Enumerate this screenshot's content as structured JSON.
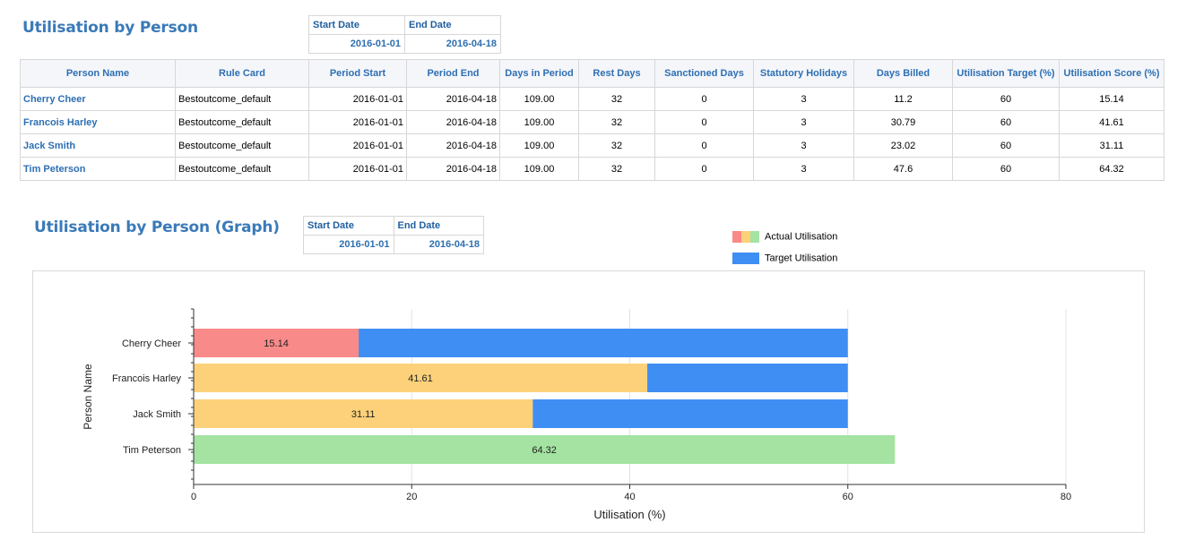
{
  "table_section": {
    "title": "Utilisation by Person",
    "start_date_label": "Start Date",
    "end_date_label": "End Date",
    "start_date": "2016-01-01",
    "end_date": "2016-04-18"
  },
  "table": {
    "headers": [
      "Person Name",
      "Rule Card",
      "Period Start",
      "Period End",
      "Days in Period",
      "Rest Days",
      "Sanctioned Days",
      "Statutory Holidays",
      "Days Billed",
      "Utilisation Target (%)",
      "Utilisation Score (%)"
    ],
    "rows": [
      [
        "Cherry Cheer",
        "Bestoutcome_default",
        "2016-01-01",
        "2016-04-18",
        "109.00",
        "32",
        "0",
        "3",
        "11.2",
        "60",
        "15.14"
      ],
      [
        "Francois Harley",
        "Bestoutcome_default",
        "2016-01-01",
        "2016-04-18",
        "109.00",
        "32",
        "0",
        "3",
        "30.79",
        "60",
        "41.61"
      ],
      [
        "Jack Smith",
        "Bestoutcome_default",
        "2016-01-01",
        "2016-04-18",
        "109.00",
        "32",
        "0",
        "3",
        "23.02",
        "60",
        "31.11"
      ],
      [
        "Tim Peterson",
        "Bestoutcome_default",
        "2016-01-01",
        "2016-04-18",
        "109.00",
        "32",
        "0",
        "3",
        "47.6",
        "60",
        "64.32"
      ]
    ]
  },
  "graph_section": {
    "title": "Utilisation by Person (Graph)",
    "start_date_label": "Start Date",
    "end_date_label": "End Date",
    "start_date": "2016-01-01",
    "end_date": "2016-04-18"
  },
  "legend": {
    "actual": "Actual Utilisation",
    "target": "Target Utilisation"
  },
  "colors": {
    "low": "#f98a8a",
    "mid": "#fcd179",
    "high": "#a4e3a1",
    "target": "#3f8ef4",
    "link": "#2e6fb2"
  },
  "chart_data": {
    "type": "bar",
    "orientation": "horizontal",
    "categories": [
      "Cherry Cheer",
      "Francois Harley",
      "Jack Smith",
      "Tim Peterson"
    ],
    "series": [
      {
        "name": "Actual Utilisation",
        "values": [
          15.14,
          41.61,
          31.11,
          64.32
        ],
        "colors": [
          "#f98a8a",
          "#fcd179",
          "#fcd179",
          "#a4e3a1"
        ]
      },
      {
        "name": "Target Utilisation",
        "values": [
          60,
          60,
          60,
          60
        ],
        "color": "#3f8ef4"
      }
    ],
    "data_labels": [
      "15.14",
      "41.61",
      "31.11",
      "64.32"
    ],
    "xlabel": "Utilisation (%)",
    "ylabel": "Person Name",
    "xlim": [
      0,
      80
    ],
    "xticks": [
      0,
      20,
      40,
      60,
      80
    ],
    "grid": true,
    "legend_position": "top-right"
  }
}
